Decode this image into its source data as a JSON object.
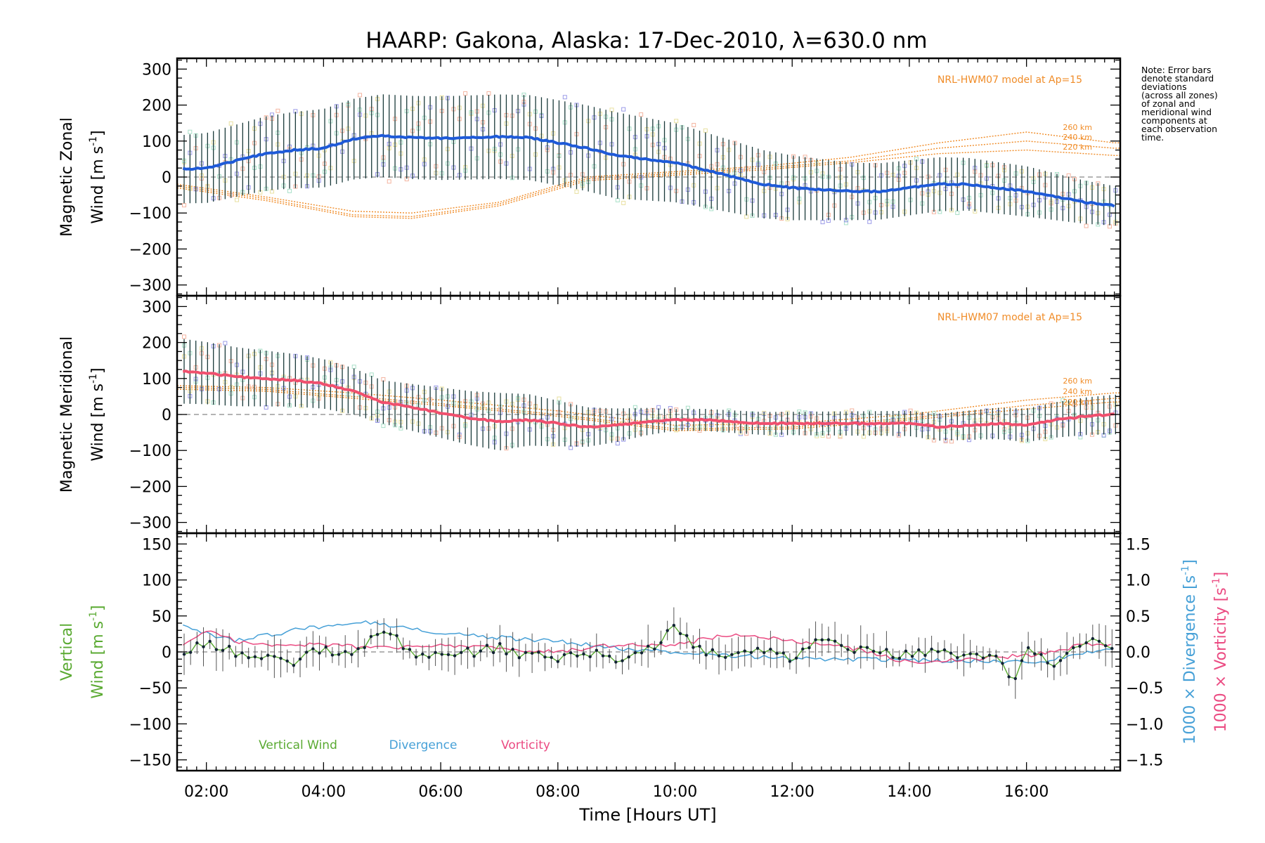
{
  "title": "HAARP: Gakona,  Alaska: 17-Dec-2010, λ=630.0 nm",
  "x_axis": {
    "label": "Time [Hours UT]",
    "ticks": [
      "02:00",
      "04:00",
      "06:00",
      "08:00",
      "10:00",
      "12:00",
      "14:00",
      "16:00"
    ],
    "range_hours": [
      1.5,
      17.6
    ]
  },
  "note_lines": [
    "Note: Error bars",
    "denote standard",
    "deviations",
    "(across all zones)",
    "of zonal and",
    "meridional wind",
    "components at",
    "each observation",
    "time."
  ],
  "model": {
    "label": "NRL-HWM07 model at Ap=15",
    "altitudes": [
      "260 km",
      "240 km",
      "220 km"
    ],
    "color": "#f08c28"
  },
  "panels": {
    "zonal": {
      "ylabel_line1": "Magnetic Zonal",
      "ylabel_line2": "Wind [m s",
      "ylabel_sup": "-1",
      "ylabel_end": "]",
      "yticks": [
        "300",
        "200",
        "100",
        "0",
        "−100",
        "−200",
        "−300"
      ],
      "ylim": [
        -330,
        330
      ],
      "color": "#1e5ad8"
    },
    "meridional": {
      "ylabel_line1": "Magnetic Meridional",
      "ylabel_line2": "Wind [m s",
      "ylabel_sup": "-1",
      "ylabel_end": "]",
      "yticks": [
        "300",
        "200",
        "100",
        "0",
        "−100",
        "−200",
        "−300"
      ],
      "ylim": [
        -330,
        330
      ],
      "color": "#f0506e"
    },
    "vertical": {
      "ylabel_line1": "Vertical",
      "ylabel_line2": "Wind [m s",
      "ylabel_sup": "-1",
      "ylabel_end": "]",
      "yticks": [
        "150",
        "100",
        "50",
        "0",
        "−50",
        "−100",
        "−150"
      ],
      "ylim": [
        -165,
        165
      ],
      "right_yticks": [
        "1.5",
        "1.0",
        "0.5",
        "0.0",
        "−0.5",
        "−1.0",
        "−1.5"
      ],
      "right_label_div": "1000 × Divergence [s",
      "right_label_vort": "1000 × Vorticity [s",
      "legend": [
        "Vertical Wind",
        "Divergence",
        "Vorticity"
      ]
    }
  },
  "colors": {
    "vertical": "#5aaa32",
    "divergence": "#46a0d7",
    "vorticity": "#eb4b82",
    "model": "#f08c28",
    "zonal": "#1e5ad8",
    "meridional": "#f0506e"
  },
  "chart_data": [
    {
      "type": "line",
      "panel": "zonal",
      "xlabel": "Time [Hours UT]",
      "ylabel": "Magnetic Zonal Wind [m s-1]",
      "ylim": [
        -330,
        330
      ],
      "series": [
        {
          "name": "zonal_mean",
          "x": [
            1.6,
            2.0,
            2.5,
            3.0,
            3.5,
            4.0,
            4.5,
            5.0,
            5.5,
            6.0,
            6.5,
            7.0,
            7.5,
            8.0,
            8.5,
            9.0,
            9.5,
            10.0,
            10.5,
            11.0,
            11.5,
            12.0,
            12.5,
            13.0,
            13.5,
            14.0,
            14.5,
            15.0,
            15.5,
            16.0,
            16.5,
            17.0,
            17.5
          ],
          "y": [
            22,
            25,
            45,
            65,
            75,
            80,
            105,
            115,
            110,
            108,
            110,
            112,
            110,
            95,
            80,
            60,
            50,
            40,
            20,
            0,
            -20,
            -30,
            -35,
            -40,
            -40,
            -30,
            -20,
            -20,
            -30,
            -40,
            -55,
            -70,
            -80
          ]
        },
        {
          "name": "error_bar_half_width",
          "x": [
            1.6,
            5.0,
            9.0,
            13.0,
            16.0,
            17.5
          ],
          "y": [
            95,
            115,
            120,
            80,
            70,
            55
          ]
        },
        {
          "name": "260 km",
          "x": [
            1.5,
            3.0,
            4.5,
            5.5,
            7.0,
            8.5,
            10.0,
            11.5,
            13.0,
            14.5,
            16.0,
            17.5
          ],
          "y": [
            -20,
            -55,
            -95,
            -100,
            -70,
            0,
            15,
            30,
            55,
            95,
            125,
            95
          ]
        },
        {
          "name": "240 km",
          "x": [
            1.5,
            3.0,
            4.5,
            5.5,
            7.0,
            8.5,
            10.0,
            11.5,
            13.0,
            14.5,
            16.0,
            17.5
          ],
          "y": [
            -25,
            -60,
            -105,
            -110,
            -75,
            -5,
            10,
            25,
            45,
            80,
            100,
            80
          ]
        },
        {
          "name": "220 km",
          "x": [
            1.5,
            3.0,
            4.5,
            5.5,
            7.0,
            8.5,
            10.0,
            11.5,
            13.0,
            14.5,
            16.0,
            17.5
          ],
          "y": [
            -30,
            -65,
            -110,
            -115,
            -80,
            -10,
            5,
            20,
            40,
            65,
            75,
            60
          ]
        }
      ]
    },
    {
      "type": "line",
      "panel": "meridional",
      "xlabel": "Time [Hours UT]",
      "ylabel": "Magnetic Meridional Wind [m s-1]",
      "ylim": [
        -330,
        330
      ],
      "series": [
        {
          "name": "meridional_mean",
          "x": [
            1.6,
            2.0,
            2.5,
            3.0,
            3.5,
            4.0,
            4.5,
            5.0,
            5.5,
            6.0,
            6.5,
            7.0,
            7.5,
            8.0,
            8.5,
            9.0,
            9.5,
            10.0,
            10.5,
            11.0,
            11.5,
            12.0,
            12.5,
            13.0,
            13.5,
            14.0,
            14.5,
            15.0,
            15.5,
            16.0,
            16.5,
            17.0,
            17.5
          ],
          "y": [
            120,
            115,
            105,
            100,
            95,
            85,
            65,
            35,
            20,
            5,
            -10,
            -20,
            -15,
            -25,
            -35,
            -30,
            -20,
            -15,
            -15,
            -20,
            -25,
            -25,
            -25,
            -25,
            -25,
            -25,
            -35,
            -30,
            -25,
            -30,
            -15,
            -5,
            0
          ]
        },
        {
          "name": "error_bar_half_width",
          "x": [
            1.6,
            5.0,
            7.0,
            10.0,
            14.0,
            17.5
          ],
          "y": [
            90,
            60,
            80,
            30,
            35,
            55
          ]
        },
        {
          "name": "260 km",
          "x": [
            1.5,
            3.0,
            4.5,
            6.0,
            8.0,
            10.0,
            12.0,
            14.0,
            16.0,
            17.5
          ],
          "y": [
            80,
            75,
            60,
            40,
            10,
            -30,
            -25,
            0,
            40,
            60
          ]
        },
        {
          "name": "240 km",
          "x": [
            1.5,
            3.0,
            4.5,
            6.0,
            8.0,
            10.0,
            12.0,
            14.0,
            16.0,
            17.5
          ],
          "y": [
            75,
            70,
            50,
            30,
            0,
            -40,
            -35,
            -10,
            25,
            45
          ]
        },
        {
          "name": "220 km",
          "x": [
            1.5,
            3.0,
            4.5,
            6.0,
            8.0,
            10.0,
            12.0,
            14.0,
            16.0,
            17.5
          ],
          "y": [
            70,
            65,
            45,
            25,
            -5,
            -45,
            -40,
            -15,
            15,
            35
          ]
        }
      ]
    },
    {
      "type": "line",
      "panel": "vertical",
      "xlabel": "Time [Hours UT]",
      "ylabel": "Vertical Wind [m s-1]",
      "ylim": [
        -165,
        165
      ],
      "series": [
        {
          "name": "Vertical Wind",
          "x": [
            1.6,
            2.0,
            2.5,
            3.0,
            3.5,
            4.0,
            4.5,
            5.0,
            5.5,
            6.0,
            6.5,
            7.0,
            7.5,
            8.0,
            8.5,
            9.0,
            9.5,
            10.0,
            10.5,
            11.0,
            11.5,
            12.0,
            12.5,
            13.0,
            13.5,
            14.0,
            14.5,
            15.0,
            15.5,
            15.75,
            16.0,
            16.5,
            17.0,
            17.5
          ],
          "y": [
            -5,
            15,
            0,
            -10,
            -15,
            5,
            -5,
            35,
            0,
            -5,
            0,
            5,
            -5,
            -10,
            0,
            -10,
            0,
            35,
            -5,
            0,
            5,
            -10,
            15,
            5,
            0,
            -5,
            0,
            -5,
            -10,
            -45,
            0,
            -15,
            15,
            5
          ]
        },
        {
          "name": "Divergence",
          "x": [
            1.6,
            2.5,
            3.5,
            4.5,
            5.0,
            6.0,
            7.0,
            8.0,
            9.0,
            10.0,
            11.0,
            12.0,
            13.0,
            14.0,
            15.0,
            16.0,
            16.5,
            17.0,
            17.5
          ],
          "y": [
            0.35,
            0.15,
            0.3,
            0.42,
            0.38,
            0.25,
            0.2,
            0.15,
            0.05,
            0.0,
            -0.05,
            -0.1,
            -0.1,
            -0.12,
            -0.12,
            -0.15,
            -0.1,
            0.0,
            0.05
          ]
        },
        {
          "name": "Vorticity",
          "x": [
            1.6,
            2.0,
            2.5,
            3.0,
            4.0,
            5.0,
            6.0,
            7.0,
            8.0,
            9.0,
            10.0,
            11.0,
            11.5,
            12.0,
            13.0,
            14.0,
            15.0,
            16.0,
            17.0,
            17.5
          ],
          "y": [
            0.1,
            0.3,
            0.15,
            0.1,
            0.1,
            0.05,
            0.1,
            0.05,
            0.0,
            0.1,
            0.1,
            0.25,
            0.2,
            0.15,
            0.05,
            -0.15,
            -0.1,
            -0.05,
            0.1,
            0.1
          ]
        }
      ]
    }
  ]
}
